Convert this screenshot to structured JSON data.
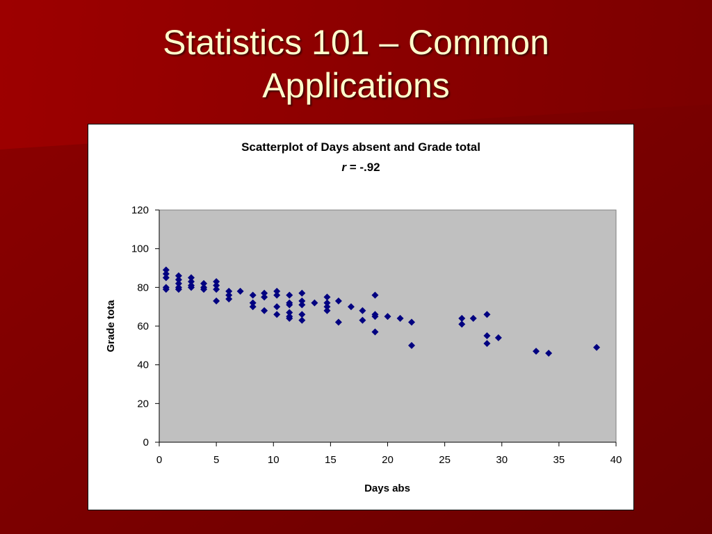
{
  "slide": {
    "title_line1": "Statistics 101 – Common",
    "title_line2": "Applications",
    "colors": {
      "background": "#7a0000",
      "highlight": "#9a0000",
      "title_text": "#ffffcc"
    }
  },
  "chart_data": {
    "type": "scatter",
    "title": "Scatterplot of Days absent and Grade total",
    "subtitle_italic": "r",
    "subtitle_rest": " = -.92",
    "xlabel": "Days abs",
    "ylabel": "Grade tota",
    "xlim": [
      0,
      40
    ],
    "ylim": [
      0,
      120
    ],
    "xticks": [
      0,
      5,
      10,
      15,
      20,
      25,
      30,
      35,
      40
    ],
    "yticks": [
      0,
      20,
      40,
      60,
      80,
      100,
      120
    ],
    "grid": false,
    "legend": "none",
    "colors": {
      "plot_area": "#c0c0c0",
      "marker": "#000080"
    },
    "series": [
      {
        "points": [
          [
            0.6,
            89
          ],
          [
            0.6,
            87
          ],
          [
            0.6,
            85
          ],
          [
            0.6,
            80
          ],
          [
            0.6,
            79
          ],
          [
            1.7,
            86
          ],
          [
            1.7,
            84
          ],
          [
            1.7,
            82
          ],
          [
            1.7,
            80
          ],
          [
            1.7,
            79
          ],
          [
            2.8,
            85
          ],
          [
            2.8,
            83
          ],
          [
            2.8,
            81
          ],
          [
            2.8,
            80
          ],
          [
            3.9,
            82
          ],
          [
            3.9,
            80
          ],
          [
            3.9,
            79
          ],
          [
            5.0,
            83
          ],
          [
            5.0,
            81
          ],
          [
            5.0,
            79
          ],
          [
            5.0,
            73
          ],
          [
            6.1,
            78
          ],
          [
            6.1,
            76
          ],
          [
            6.1,
            74
          ],
          [
            7.1,
            78
          ],
          [
            8.2,
            76
          ],
          [
            8.2,
            72
          ],
          [
            8.2,
            70
          ],
          [
            9.2,
            77
          ],
          [
            9.2,
            75
          ],
          [
            9.2,
            68
          ],
          [
            10.3,
            78
          ],
          [
            10.3,
            76
          ],
          [
            10.3,
            70
          ],
          [
            10.3,
            66
          ],
          [
            11.4,
            76
          ],
          [
            11.4,
            72
          ],
          [
            11.4,
            71
          ],
          [
            11.4,
            67
          ],
          [
            11.4,
            65
          ],
          [
            11.4,
            64
          ],
          [
            12.5,
            77
          ],
          [
            12.5,
            73
          ],
          [
            12.5,
            71
          ],
          [
            12.5,
            66
          ],
          [
            12.5,
            63
          ],
          [
            13.6,
            72
          ],
          [
            14.7,
            75
          ],
          [
            14.7,
            72
          ],
          [
            14.7,
            70
          ],
          [
            14.7,
            68
          ],
          [
            15.7,
            73
          ],
          [
            15.7,
            62
          ],
          [
            16.8,
            70
          ],
          [
            17.8,
            68
          ],
          [
            17.8,
            63
          ],
          [
            18.9,
            76
          ],
          [
            18.9,
            66
          ],
          [
            18.9,
            65
          ],
          [
            18.9,
            57
          ],
          [
            20.0,
            65
          ],
          [
            21.1,
            64
          ],
          [
            22.1,
            62
          ],
          [
            22.1,
            50
          ],
          [
            26.5,
            64
          ],
          [
            26.5,
            61
          ],
          [
            27.5,
            64
          ],
          [
            28.7,
            66
          ],
          [
            28.7,
            55
          ],
          [
            28.7,
            51
          ],
          [
            29.7,
            54
          ],
          [
            33.0,
            47
          ],
          [
            34.1,
            46
          ],
          [
            38.3,
            49
          ]
        ]
      }
    ]
  }
}
